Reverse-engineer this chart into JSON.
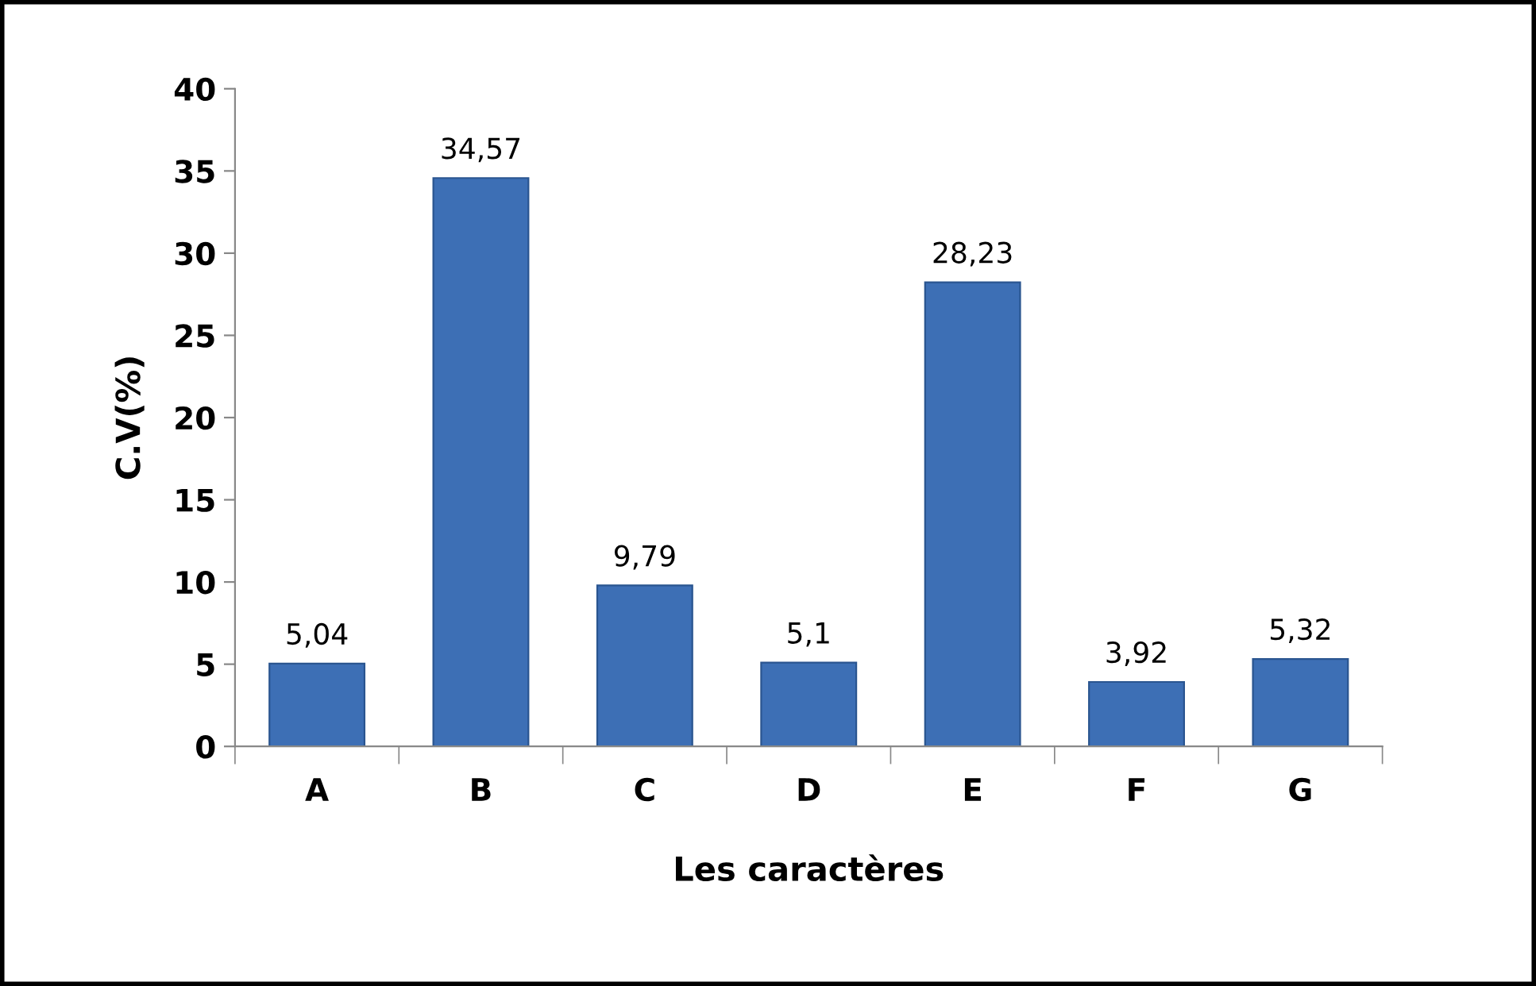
{
  "chart_data": {
    "type": "bar",
    "xlabel": "Les caractères",
    "ylabel": "C.V(%)",
    "categories": [
      "A",
      "B",
      "C",
      "D",
      "E",
      "F",
      "G"
    ],
    "values": [
      5.04,
      34.57,
      9.79,
      5.1,
      28.23,
      3.92,
      5.32
    ],
    "value_labels": [
      "5,04",
      "34,57",
      "9,79",
      "5,1",
      "28,23",
      "3,92",
      "5,32"
    ],
    "color": "#3d6fb5",
    "ylim": [
      0,
      40
    ],
    "yticks": [
      0,
      5,
      10,
      15,
      20,
      25,
      30,
      35,
      40
    ],
    "grid": false,
    "legend": false
  }
}
